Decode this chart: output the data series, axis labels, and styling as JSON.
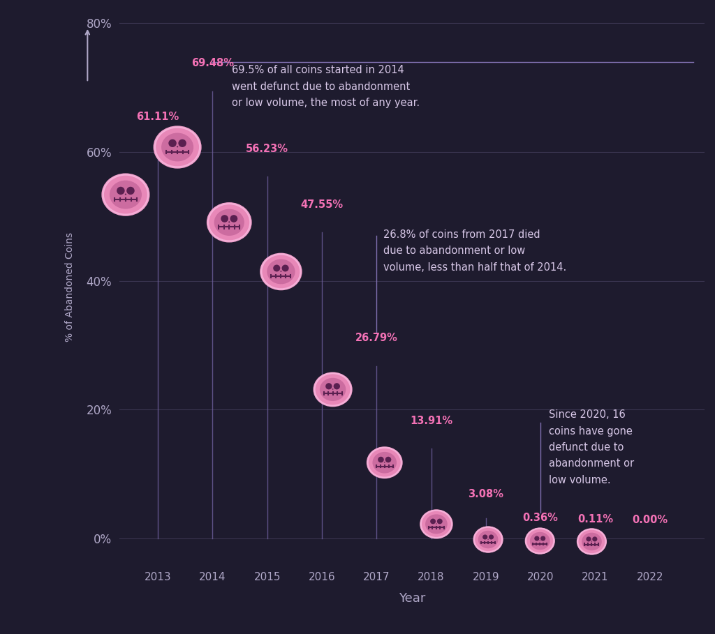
{
  "years": [
    2013,
    2014,
    2015,
    2016,
    2017,
    2018,
    2019,
    2020,
    2021,
    2022
  ],
  "values": [
    61.11,
    69.48,
    56.23,
    47.55,
    26.79,
    13.91,
    3.08,
    0.36,
    0.11,
    0.0
  ],
  "labels": [
    "61.11%",
    "69.48%",
    "56.23%",
    "47.55%",
    "26.79%",
    "13.91%",
    "3.08%",
    "0.36%",
    "0.11%",
    "0.00%"
  ],
  "bg_color": "#1e1b2e",
  "grid_color": "#3a3550",
  "tick_color": "#b0a8c8",
  "label_color": "#f472b6",
  "text_color": "#d8c8e8",
  "ylabel": "% of Abandoned Coins",
  "xlabel": "Year",
  "ylim": [
    -4,
    82
  ],
  "yticks": [
    0,
    20,
    40,
    60,
    80
  ],
  "ytick_labels": [
    "0%",
    "20%",
    "40%",
    "60%",
    "80%"
  ],
  "coin_outer_color": "#e888b8",
  "coin_outer_edge": "#f0a0cc",
  "coin_face_bg": "#d070a0",
  "coin_dark": "#6b3060",
  "annotation1_text": "69.5% of all coins started in 2014\nwent defunct due to abandonment\nor low volume, the most of any year.",
  "annotation2_text": "26.8% of coins from 2017 died\ndue to abandonment or low\nvolume, less than half that of 2014.",
  "annotation3_text": "Since 2020, 16\ncoins have gone\ndefunct due to\nabandonment or\nlow volume.",
  "stem_color": "#7060a0",
  "line_color": "#8070b0"
}
